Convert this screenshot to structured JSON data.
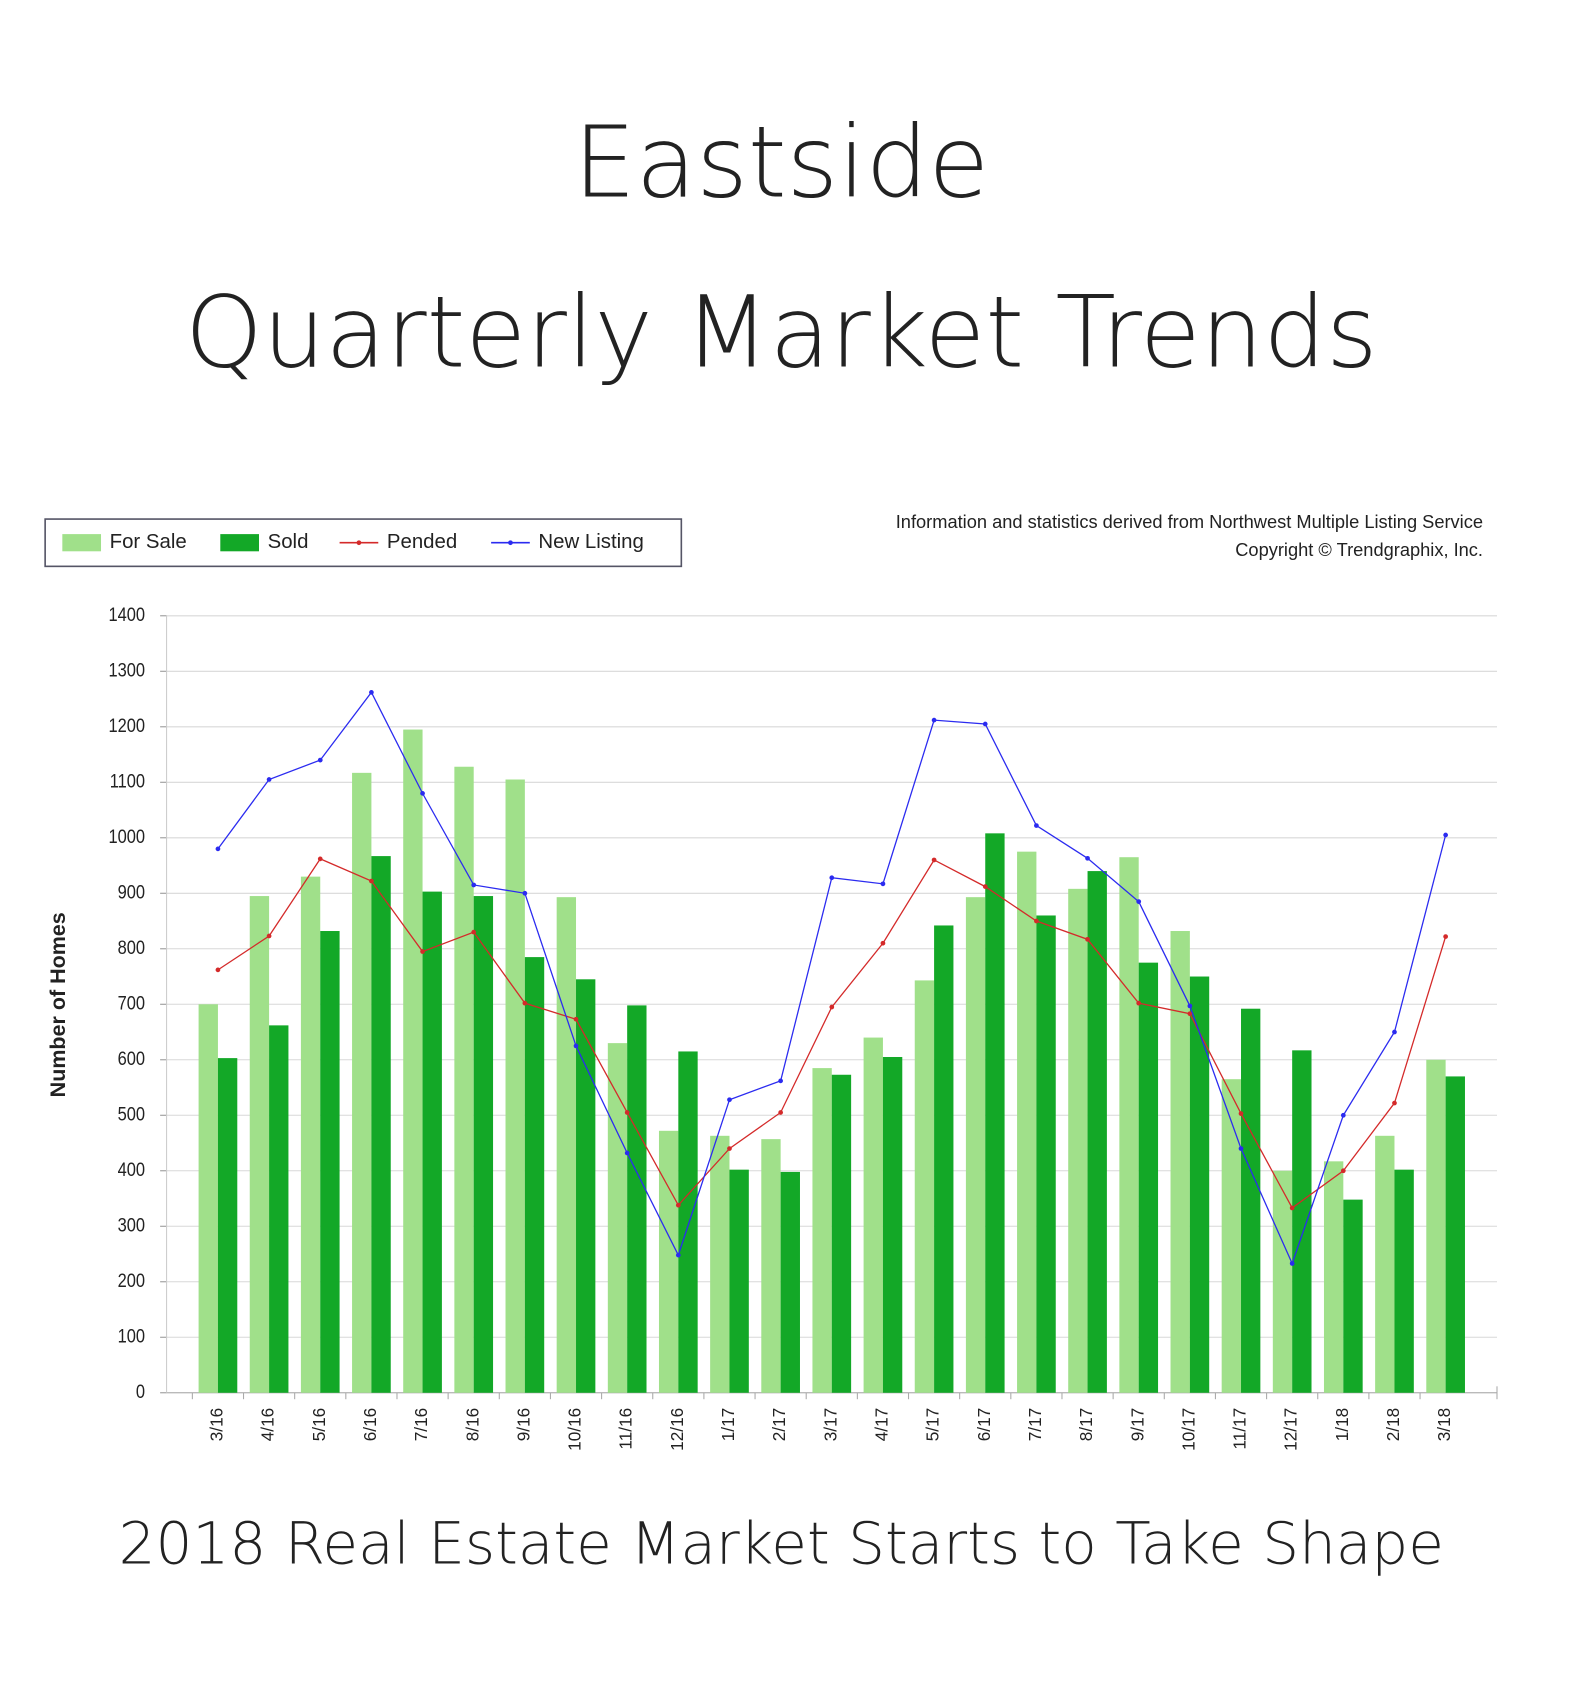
{
  "chart_data": {
    "type": "bar",
    "title": "Eastside",
    "subtitle": "Quarterly Market Trends",
    "caption": "2018 Real Estate Market Starts to Take Shape",
    "annotations": [
      "Information and statistics derived from Northwest Multiple Listing Service",
      "Copyright © Trendgraphix, Inc."
    ],
    "y_label": "Number of Homes",
    "categories": [
      "3/16",
      "4/16",
      "5/16",
      "6/16",
      "7/16",
      "8/16",
      "9/16",
      "10/16",
      "11/16",
      "12/16",
      "1/17",
      "2/17",
      "3/17",
      "4/17",
      "5/17",
      "6/17",
      "7/17",
      "8/17",
      "9/17",
      "10/17",
      "11/17",
      "12/17",
      "1/18",
      "2/18",
      "3/18"
    ],
    "series": [
      {
        "name": "For Sale",
        "type": "bar",
        "color": "#a0e08a",
        "values": [
          700,
          895,
          930,
          1117,
          1195,
          1128,
          1105,
          893,
          630,
          472,
          463,
          457,
          585,
          640,
          743,
          893,
          975,
          908,
          965,
          832,
          565,
          400,
          417,
          463,
          600
        ]
      },
      {
        "name": "Sold",
        "type": "bar",
        "color": "#13a827",
        "values": [
          603,
          662,
          832,
          967,
          903,
          895,
          785,
          745,
          698,
          615,
          402,
          398,
          573,
          605,
          842,
          1008,
          860,
          940,
          775,
          750,
          692,
          617,
          348,
          402,
          570
        ]
      },
      {
        "name": "Pended",
        "type": "line",
        "color": "#d42a2a",
        "values": [
          762,
          823,
          962,
          922,
          795,
          830,
          702,
          673,
          505,
          338,
          440,
          505,
          695,
          810,
          960,
          912,
          850,
          817,
          702,
          683,
          503,
          333,
          400,
          522,
          822
        ]
      },
      {
        "name": "New Listing",
        "type": "line",
        "color": "#2b2bf0",
        "values": [
          980,
          1105,
          1140,
          1262,
          1080,
          915,
          900,
          625,
          432,
          248,
          528,
          562,
          928,
          917,
          1212,
          1205,
          1022,
          963,
          885,
          697,
          440,
          233,
          500,
          650,
          1005
        ]
      }
    ],
    "ylim": [
      0,
      1400
    ],
    "yticks": [
      0,
      100,
      200,
      300,
      400,
      500,
      600,
      700,
      800,
      900,
      1000,
      1100,
      1200,
      1300,
      1400
    ],
    "grid": true
  }
}
